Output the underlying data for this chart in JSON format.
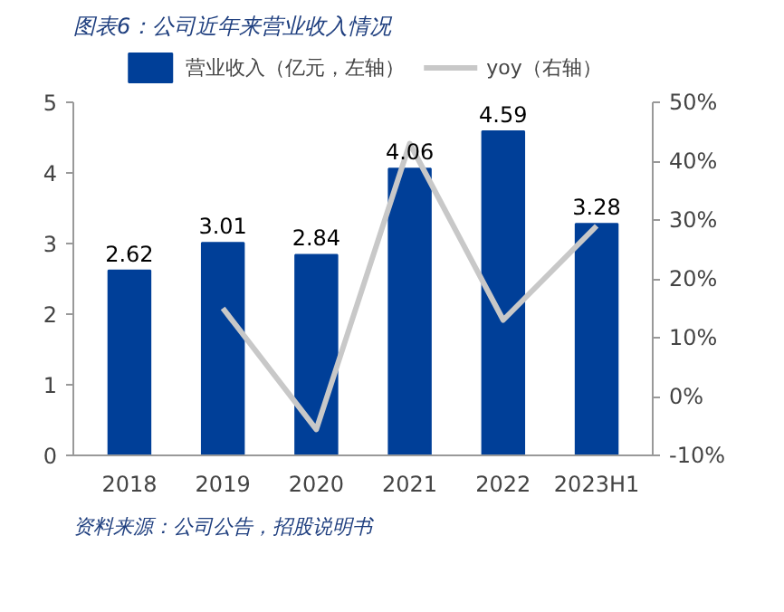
{
  "chart_data": {
    "type": "bar",
    "title": "图表6：公司近年来营业收入情况",
    "categories": [
      "2018",
      "2019",
      "2020",
      "2021",
      "2022",
      "2023H1"
    ],
    "series": [
      {
        "name": "营业收入（亿元，左轴）",
        "color": "#003f98",
        "values": [
          2.62,
          3.01,
          2.84,
          4.06,
          4.59,
          3.28
        ]
      },
      {
        "name": "yoy（右轴）",
        "type": "line",
        "axis": "y2",
        "color": "#c8c8c8",
        "values": [
          null,
          15,
          -5.6,
          43,
          13,
          29
        ]
      }
    ],
    "ylim": [
      0,
      5
    ],
    "yticks": [
      0,
      1,
      2,
      3,
      4,
      5
    ],
    "y2lim": [
      -10,
      50
    ],
    "y2ticks": [
      {
        "value": -10,
        "label": "-10%"
      },
      {
        "value": 0,
        "label": "0%"
      },
      {
        "value": 10,
        "label": "10%"
      },
      {
        "value": 20,
        "label": "20%"
      },
      {
        "value": 30,
        "label": "30%"
      },
      {
        "value": 40,
        "label": "40%"
      },
      {
        "value": 50,
        "label": "50%"
      }
    ],
    "value_labels": [
      "2.62",
      "3.01",
      "2.84",
      "4.06",
      "4.59",
      "3.28"
    ],
    "legend": "top",
    "grid": false,
    "marker": "none",
    "line_style": "solid",
    "annotations": [
      "资料来源：公司公告，招股说明书"
    ]
  }
}
